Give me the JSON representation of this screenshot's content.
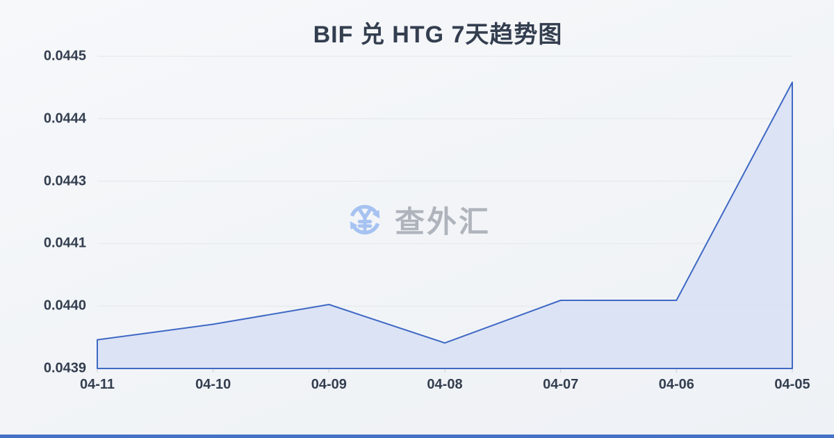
{
  "page": {
    "background_top": "#f6f8fa",
    "background_bottom": "#eef1f5",
    "bottom_bar_color": "#4470c6"
  },
  "watermark": {
    "icon": "currency-exchange-icon",
    "text": "查外汇",
    "icon_color": "#a6c2f1",
    "text_color": "#afb4bc"
  },
  "chart_data": {
    "type": "area",
    "title": "BIF 兑 HTG 7天趋势图",
    "categories": [
      "04-11",
      "04-10",
      "04-09",
      "04-08",
      "04-07",
      "04-06",
      "04-05"
    ],
    "values": [
      0.043945,
      0.043975,
      0.044013,
      0.043939,
      0.044021,
      0.044021,
      0.04444
    ],
    "xlabel": "",
    "ylabel": "",
    "ylim": [
      0.04389,
      0.04449
    ],
    "y_ticks": [
      {
        "value": 0.04389,
        "label": "0.0439"
      },
      {
        "value": 0.04401,
        "label": "0.0440"
      },
      {
        "value": 0.04413,
        "label": "0.0441"
      },
      {
        "value": 0.04425,
        "label": "0.0443"
      },
      {
        "value": 0.04437,
        "label": "0.0444"
      },
      {
        "value": 0.04449,
        "label": "0.0445"
      }
    ],
    "grid": true,
    "legend": false,
    "line_color": "#3e68c4",
    "fill_color": "#d9e1f4",
    "grid_color": "#e3e6eb",
    "tick_color": "#c9ced6",
    "text_color": "#333e4f"
  }
}
